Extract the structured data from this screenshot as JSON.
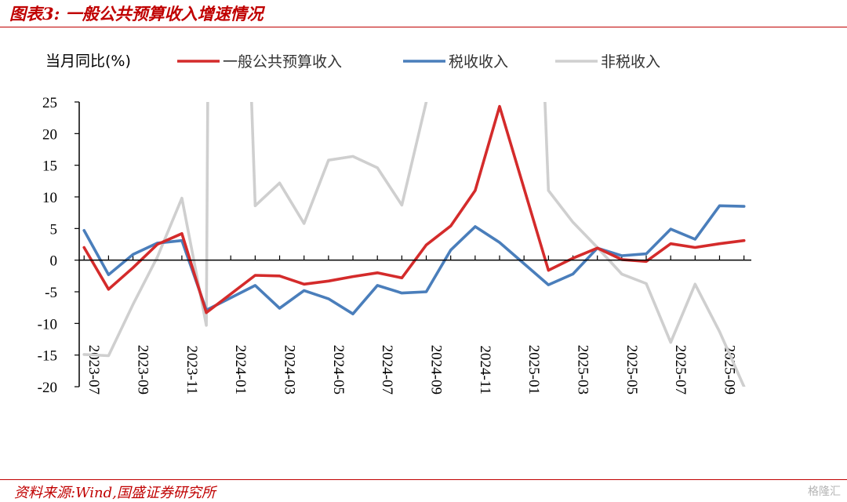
{
  "title": "图表3:  一般公共预算收入增速情况",
  "source": "资料来源:Wind,国盛证券研究所",
  "watermark": "格隆汇",
  "chart_data": {
    "type": "line",
    "ylabel": "当月同比(%)",
    "ylim": [
      -20,
      25
    ],
    "yticks": [
      25,
      20,
      15,
      10,
      5,
      0,
      -5,
      -10,
      -15,
      -20
    ],
    "x": [
      "2023-07",
      "2023-08",
      "2023-09",
      "2023-10",
      "2023-11",
      "2023-12",
      "2024-01",
      "2024-02",
      "2024-03",
      "2024-04",
      "2024-05",
      "2024-06",
      "2024-07",
      "2024-08",
      "2024-09",
      "2024-10",
      "2024-11",
      "2024-12",
      "2025-01",
      "2025-02",
      "2025-03",
      "2025-04",
      "2025-05",
      "2025-06",
      "2025-07",
      "2025-08",
      "2025-09",
      "2025-10"
    ],
    "xtick_labels": [
      "2023-07",
      "2023-09",
      "2023-11",
      "2024-01",
      "2024-03",
      "2024-05",
      "2024-07",
      "2024-09",
      "2024-11",
      "2025-01",
      "2025-03",
      "2025-05",
      "2025-07",
      "2025-09"
    ],
    "legend_position": "top",
    "grid": false,
    "series": [
      {
        "name": "一般公共预算收入",
        "color": "#d42b2b",
        "values": [
          2.0,
          -4.6,
          -1.2,
          2.5,
          4.2,
          -8.3,
          null,
          -2.4,
          -2.5,
          -3.8,
          -3.3,
          -2.6,
          -2.0,
          -2.8,
          2.4,
          5.4,
          11.0,
          24.3,
          null,
          -1.6,
          0.3,
          1.9,
          0.1,
          -0.2,
          2.6,
          2.0,
          2.6,
          3.1
        ]
      },
      {
        "name": "税收收入",
        "color": "#4a7ebb",
        "values": [
          4.7,
          -2.3,
          0.9,
          2.7,
          3.1,
          -7.9,
          null,
          -4.0,
          -7.6,
          -4.8,
          -6.1,
          -8.5,
          -4.0,
          -5.2,
          -5.0,
          1.6,
          5.3,
          2.8,
          null,
          -3.9,
          -2.2,
          1.9,
          0.7,
          1.0,
          4.9,
          3.3,
          8.6,
          8.5
        ]
      },
      {
        "name": "非税收入",
        "color": "#cfcfcf",
        "values": [
          -14.9,
          -15.1,
          -7.0,
          0.5,
          9.8,
          -10.3,
          null,
          8.6,
          12.2,
          5.8,
          15.8,
          16.4,
          14.6,
          8.7,
          25.0,
          null,
          null,
          null,
          null,
          11.0,
          6.0,
          2.0,
          -2.2,
          -3.7,
          -13.0,
          -3.8,
          -11.3,
          -20.0
        ]
      }
    ]
  }
}
